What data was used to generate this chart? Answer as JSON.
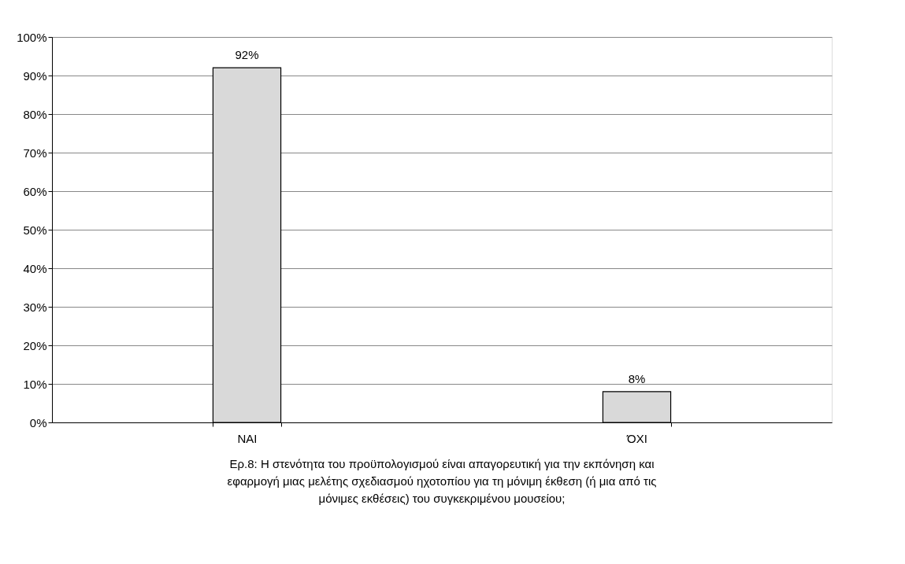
{
  "chart_data": {
    "type": "bar",
    "categories": [
      "ΝΑΙ",
      "ΌΧΙ"
    ],
    "values": [
      92,
      8
    ],
    "value_labels": [
      "92%",
      "8%"
    ],
    "color": "#d9d9d9",
    "ylim": [
      0,
      100
    ],
    "yticks": [
      {
        "value": 0,
        "label": "0%"
      },
      {
        "value": 10,
        "label": "10%"
      },
      {
        "value": 20,
        "label": "20%"
      },
      {
        "value": 30,
        "label": "30%"
      },
      {
        "value": 40,
        "label": "40%"
      },
      {
        "value": 50,
        "label": "50%"
      },
      {
        "value": 60,
        "label": "60%"
      },
      {
        "value": 70,
        "label": "70%"
      },
      {
        "value": 80,
        "label": "80%"
      },
      {
        "value": 90,
        "label": "90%"
      },
      {
        "value": 100,
        "label": "100%"
      }
    ],
    "grid": "y",
    "annotations": [
      "Ερ.8: Η στενότητα του προϋπολογισμού είναι απαγορευτική για την εκπόνηση και εφαρμογή μιας μελέτης σχεδιασμού ηχοτοπίου για τη μόνιμη έκθεση (ή μια από τις μόνιμες εκθέσεις) του συγκεκριμένου μουσείου;"
    ]
  }
}
